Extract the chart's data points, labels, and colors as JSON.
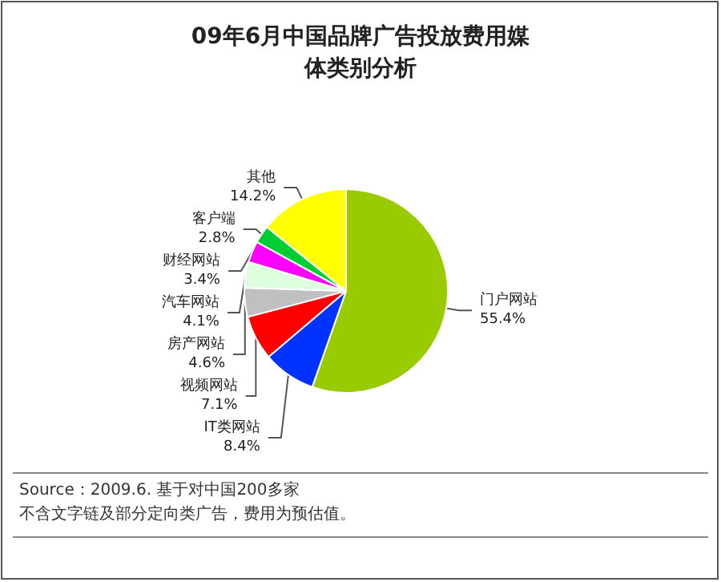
{
  "chart_data": {
    "type": "pie",
    "title": "09年6月中国品牌广告投放费用媒体类别分析",
    "categories": [
      "门户网站",
      "IT类网站",
      "视频网站",
      "房产网站",
      "汽车网站",
      "财经网站",
      "客户端",
      "其他"
    ],
    "values": [
      55.4,
      8.4,
      7.1,
      4.6,
      4.1,
      3.4,
      2.8,
      14.2
    ],
    "value_labels": [
      "55.4%",
      "8.4%",
      "7.1%",
      "4.6%",
      "4.1%",
      "3.4%",
      "2.8%",
      "14.2%"
    ],
    "colors": [
      "#99cc00",
      "#0033ff",
      "#ff0000",
      "#c0c0c0",
      "#ddffdd",
      "#ff00ff",
      "#00cc33",
      "#ffff00"
    ],
    "annotations": [
      "Source：2009.6. 基于对中国200多家",
      "不含文字链及部分定向类广告，费用为预估值。"
    ],
    "legend": false
  }
}
